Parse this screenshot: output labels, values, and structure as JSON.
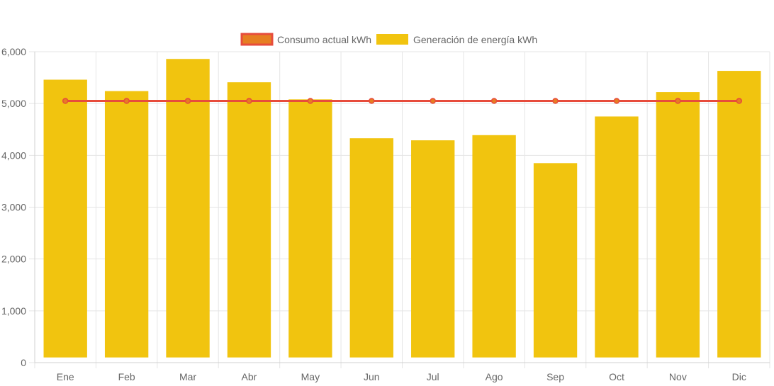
{
  "chart_data": {
    "type": "bar",
    "categories": [
      "Ene",
      "Feb",
      "Mar",
      "Abr",
      "May",
      "Jun",
      "Jul",
      "Ago",
      "Sep",
      "Oct",
      "Nov",
      "Dic"
    ],
    "series": [
      {
        "name": "Consumo actual kWh",
        "type": "line",
        "color": "#e74c3c",
        "fill_color": "#e67e22",
        "values": [
          5050,
          5050,
          5050,
          5050,
          5050,
          5050,
          5050,
          5050,
          5050,
          5050,
          5050,
          5050
        ]
      },
      {
        "name": "Generación de energía kWh",
        "type": "bar",
        "color": "#f1c40f",
        "values": [
          5460,
          5240,
          5860,
          5410,
          5080,
          4330,
          4290,
          4390,
          3850,
          4750,
          5220,
          5630
        ]
      }
    ],
    "ylim": [
      0,
      6000
    ],
    "yticks": [
      "0",
      "1,000",
      "2,000",
      "3,000",
      "4,000",
      "5,000",
      "6,000"
    ],
    "bar_base": 100,
    "grid": true,
    "legend_position": "top-center"
  }
}
